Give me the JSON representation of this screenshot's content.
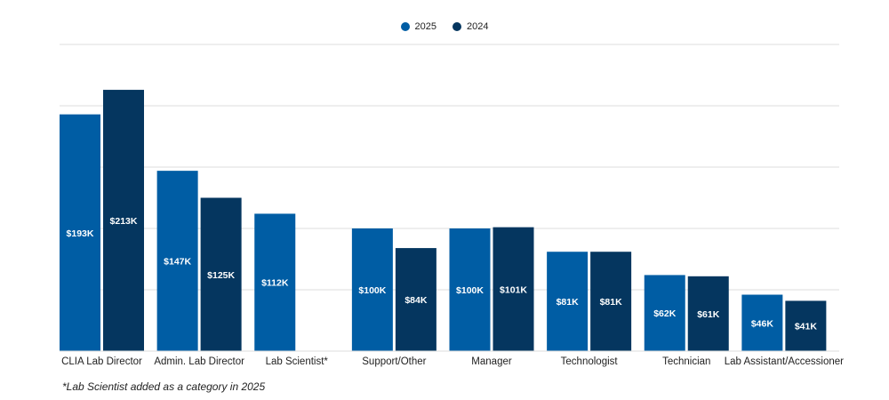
{
  "chart_data": {
    "type": "bar",
    "title": "",
    "xlabel": "",
    "ylabel": "",
    "ylim": [
      0,
      250
    ],
    "grid": true,
    "legend_position": "top-center",
    "categories": [
      "CLIA Lab Director",
      "Admin. Lab Director",
      "Lab Scientist*",
      "Support/Other",
      "Manager",
      "Technologist",
      "Technician",
      "Lab Assistant/Accessioner"
    ],
    "series": [
      {
        "name": "2025",
        "color": "#005da4",
        "values": [
          193,
          147,
          112,
          100,
          100,
          81,
          62,
          46
        ],
        "labels": [
          "$193K",
          "$147K",
          "$112K",
          "$100K",
          "$100K",
          "$81K",
          "$62K",
          "$46K"
        ]
      },
      {
        "name": "2024",
        "color": "#05365f",
        "values": [
          213,
          125,
          null,
          84,
          101,
          81,
          61,
          41
        ],
        "labels": [
          "$213K",
          "$125K",
          "",
          "$84K",
          "$101K",
          "$81K",
          "$61K",
          "$41K"
        ]
      }
    ],
    "footnote": "*Lab Scientist added as a category in 2025"
  }
}
